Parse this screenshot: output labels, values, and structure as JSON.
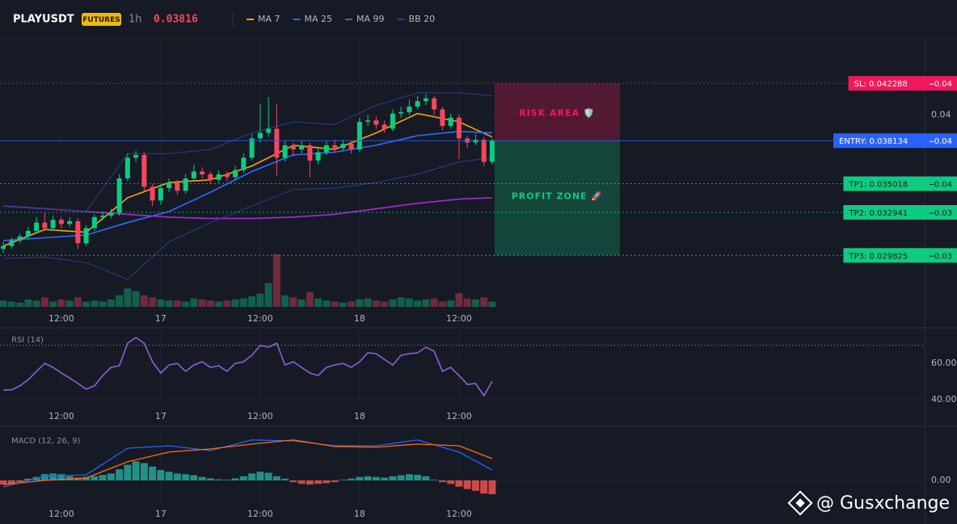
{
  "header": {
    "symbol": "PLAYUSDT",
    "badge": "FUTURES",
    "interval": "1h",
    "price": 0.03816
  },
  "watermark": "@ Gusxchange",
  "chart_data": [
    {
      "type": "candlestick",
      "xlim": [
        -0.4,
        111.2
      ],
      "xticks": [
        {
          "value": 7,
          "label": "12:00"
        },
        {
          "value": 19,
          "label": "17"
        },
        {
          "value": 31,
          "label": "12:00"
        },
        {
          "value": 43,
          "label": "18"
        },
        {
          "value": 55,
          "label": "12:00"
        }
      ],
      "ylim": [
        0.0261,
        0.0454
      ],
      "yticks": [
        0.04
      ],
      "up_color": "#0ecb81",
      "down_color": "#f6465d",
      "open": [
        0.0303,
        0.0305,
        0.0309,
        0.0312,
        0.0316,
        0.0322,
        0.0318,
        0.0324,
        0.0321,
        0.0323,
        0.0307,
        0.0318,
        0.0326,
        0.0327,
        0.0329,
        0.0354,
        0.0369,
        0.0371,
        0.0348,
        0.0338,
        0.0347,
        0.0351,
        0.0345,
        0.0354,
        0.0359,
        0.0357,
        0.0353,
        0.0357,
        0.0355,
        0.036,
        0.0369,
        0.0383,
        0.0387,
        0.039,
        0.0369,
        0.0378,
        0.0375,
        0.0378,
        0.0367,
        0.0373,
        0.0378,
        0.0376,
        0.0379,
        0.0375,
        0.0395,
        0.0396,
        0.0393,
        0.039,
        0.0401,
        0.0402,
        0.0406,
        0.041,
        0.0412,
        0.0404,
        0.0392,
        0.0398,
        0.0383,
        0.038,
        0.0382,
        0.0366
      ],
      "high": [
        0.0308,
        0.0311,
        0.0314,
        0.0319,
        0.0326,
        0.0329,
        0.0327,
        0.0326,
        0.0326,
        0.0325,
        0.032,
        0.0328,
        0.033,
        0.0332,
        0.0357,
        0.0372,
        0.0374,
        0.0373,
        0.035,
        0.035,
        0.0354,
        0.0353,
        0.0357,
        0.0364,
        0.0362,
        0.0359,
        0.036,
        0.0359,
        0.0363,
        0.0372,
        0.0386,
        0.0408,
        0.0413,
        0.0408,
        0.0381,
        0.038,
        0.0381,
        0.038,
        0.0376,
        0.0381,
        0.0382,
        0.0382,
        0.0381,
        0.0398,
        0.04,
        0.0399,
        0.0396,
        0.0404,
        0.0406,
        0.0411,
        0.0414,
        0.0415,
        0.0414,
        0.0406,
        0.0401,
        0.04,
        0.0385,
        0.0386,
        0.0384,
        0.0383
      ],
      "low": [
        0.03,
        0.0303,
        0.0307,
        0.031,
        0.0314,
        0.0316,
        0.0316,
        0.0318,
        0.0319,
        0.0303,
        0.0305,
        0.0316,
        0.0324,
        0.0325,
        0.0327,
        0.0352,
        0.0366,
        0.0345,
        0.0334,
        0.0335,
        0.0344,
        0.0342,
        0.0343,
        0.0352,
        0.0354,
        0.035,
        0.0351,
        0.0352,
        0.0353,
        0.0358,
        0.0367,
        0.038,
        0.0384,
        0.0356,
        0.0366,
        0.037,
        0.0372,
        0.0355,
        0.0364,
        0.0371,
        0.0373,
        0.0374,
        0.0372,
        0.0373,
        0.0392,
        0.039,
        0.0387,
        0.0388,
        0.0398,
        0.04,
        0.0404,
        0.0407,
        0.04,
        0.0389,
        0.039,
        0.0368,
        0.0376,
        0.0378,
        0.0363,
        0.0364
      ],
      "close": [
        0.0305,
        0.0309,
        0.0312,
        0.0316,
        0.0322,
        0.0318,
        0.0324,
        0.0321,
        0.0323,
        0.0307,
        0.0318,
        0.0326,
        0.0327,
        0.0329,
        0.0354,
        0.0369,
        0.0371,
        0.0348,
        0.0338,
        0.0347,
        0.0351,
        0.0345,
        0.0354,
        0.0359,
        0.0357,
        0.0353,
        0.0357,
        0.0355,
        0.036,
        0.0369,
        0.0383,
        0.0387,
        0.039,
        0.0369,
        0.0378,
        0.0375,
        0.0378,
        0.0367,
        0.0373,
        0.0378,
        0.0376,
        0.0379,
        0.0375,
        0.0395,
        0.0396,
        0.0393,
        0.039,
        0.0401,
        0.0402,
        0.0406,
        0.041,
        0.0412,
        0.0404,
        0.0392,
        0.0398,
        0.0383,
        0.038,
        0.0382,
        0.0366,
        0.03816
      ],
      "volume_ylim": [
        0,
        100
      ],
      "volume": [
        12,
        10,
        8,
        14,
        12,
        18,
        10,
        14,
        12,
        18,
        10,
        12,
        10,
        14,
        22,
        35,
        30,
        22,
        18,
        14,
        12,
        12,
        10,
        16,
        14,
        12,
        10,
        12,
        14,
        16,
        20,
        25,
        45,
        100,
        22,
        18,
        14,
        28,
        16,
        12,
        10,
        8,
        10,
        14,
        16,
        12,
        10,
        14,
        18,
        16,
        12,
        14,
        16,
        10,
        12,
        26,
        16,
        14,
        18,
        10
      ],
      "overlays": {
        "x": [
          0,
          5,
          10,
          15,
          20,
          25,
          30,
          35,
          40,
          45,
          50,
          55,
          59
        ],
        "series": [
          {
            "name": "MA 7",
            "color": "#f7a600",
            "values": [
              0.0305,
              0.0317,
              0.0315,
              0.034,
              0.0351,
              0.0353,
              0.0363,
              0.0378,
              0.0375,
              0.0387,
              0.0401,
              0.0395,
              0.0384
            ]
          },
          {
            "name": "MA 25",
            "color": "#2f6bff",
            "values": [
              0.0309,
              0.0311,
              0.0313,
              0.0322,
              0.033,
              0.0344,
              0.0359,
              0.0371,
              0.0373,
              0.0378,
              0.0385,
              0.0388,
              0.0387
            ]
          },
          {
            "name": "MA 99",
            "color": "#a72ad1",
            "values": [
              0.0334,
              0.0332,
              0.033,
              0.0328,
              0.0326,
              0.0325,
              0.0325,
              0.0326,
              0.0328,
              0.0332,
              0.0336,
              0.0339,
              0.034
            ]
          },
          {
            "name": "BB 20",
            "color": "#2a3f8f",
            "values": [
              0.0334,
              0.0332,
              0.033,
              0.0372,
              0.0372,
              0.0375,
              0.0387,
              0.0395,
              0.0393,
              0.0407,
              0.0416,
              0.0416,
              0.0414
            ],
            "lower": [
              0.0296,
              0.0297,
              0.0293,
              0.0281,
              0.0308,
              0.0322,
              0.0334,
              0.0346,
              0.0347,
              0.0351,
              0.0357,
              0.0366,
              0.0369
            ]
          }
        ]
      },
      "levels": [
        {
          "label": "SL: 0.042288",
          "value": 0.042288,
          "tag": "0.04",
          "color": "#f0185a",
          "text_color": "#ffffff",
          "style": "dotted"
        },
        {
          "label": "ENTRY: 0.038134",
          "value": 0.038134,
          "tag": "0.04",
          "color": "#2962ff",
          "text_color": "#ffffff",
          "style": "solid"
        },
        {
          "label": "TP1: 0.035018",
          "value": 0.035018,
          "tag": "0.04",
          "color": "#0ecb81",
          "text_color": "#10231c",
          "style": "dotted"
        },
        {
          "label": "TP2: 0.032941",
          "value": 0.032941,
          "tag": "0.03",
          "color": "#0ecb81",
          "text_color": "#10231c",
          "style": "dotted"
        },
        {
          "label": "TP3: 0.029825",
          "value": 0.029825,
          "tag": "0.03",
          "color": "#0ecb81",
          "text_color": "#10231c",
          "style": "dotted"
        }
      ],
      "zones": [
        "RISK AREA 🛡️",
        "PROFIT ZONE 🚀"
      ]
    },
    {
      "type": "line",
      "title": "RSI (14)",
      "color": "#8e5fd6",
      "xlim": [
        -0.4,
        111.2
      ],
      "xticks": [
        {
          "value": 7,
          "label": "12:00"
        },
        {
          "value": 19,
          "label": "17"
        },
        {
          "value": 31,
          "label": "12:00"
        },
        {
          "value": 43,
          "label": "18"
        },
        {
          "value": 55,
          "label": "12:00"
        }
      ],
      "ylim": [
        37.8,
        77.8
      ],
      "yticks": [
        {
          "value": 40,
          "label": "40.00"
        },
        {
          "value": 60,
          "label": "60.00"
        }
      ],
      "levels": [
        70
      ],
      "values": [
        45.3,
        45.5,
        47.6,
        51,
        55.6,
        60,
        57.8,
        54.7,
        52,
        48.9,
        45.8,
        47.6,
        53.3,
        57.8,
        58.7,
        71.1,
        74.2,
        71.1,
        60.9,
        54.7,
        59.1,
        60,
        55.6,
        59.1,
        60.9,
        57.8,
        58.7,
        55.6,
        60,
        60.9,
        64.4,
        69.8,
        68.9,
        71.1,
        59.1,
        60.9,
        57.8,
        54.7,
        53.3,
        57.8,
        59.1,
        60,
        57.8,
        60.9,
        65.8,
        65.3,
        62.2,
        59.1,
        64.4,
        65.3,
        65.8,
        68.9,
        66.7,
        55.6,
        57.8,
        53.3,
        48.4,
        48.9,
        42.2,
        50.2
      ]
    },
    {
      "type": "macd",
      "title": "MACD (12, 26, 9)",
      "xlim": [
        -0.4,
        111.2
      ],
      "xticks": [
        {
          "value": 7,
          "label": "12:00"
        },
        {
          "value": 19,
          "label": "17"
        },
        {
          "value": 31,
          "label": "12:00"
        },
        {
          "value": 43,
          "label": "18"
        },
        {
          "value": 55,
          "label": "12:00"
        }
      ],
      "ylim": [
        -0.0007,
        0.0014
      ],
      "yticks": [
        {
          "value": 0,
          "label": "0.00"
        }
      ],
      "up_color": "#26a69a",
      "down_color": "#ef5350",
      "values": [
        -0.00012,
        -0.0001,
        -5e-05,
        5e-05,
        0.0001,
        0.00018,
        0.0002,
        0.00018,
        0.00012,
        8e-05,
        0.0001,
        0.00012,
        0.00016,
        0.0002,
        0.00032,
        0.00045,
        0.00055,
        0.0005,
        0.0004,
        0.0003,
        0.00025,
        0.0002,
        0.00018,
        0.00015,
        0.0001,
        6e-05,
        3e-05,
        2e-05,
        6e-05,
        0.00012,
        0.0002,
        0.00025,
        0.00022,
        0.00012,
        5e-05,
        -5e-05,
        -0.0001,
        -0.00012,
        -0.0001,
        -8e-05,
        -5e-05,
        2e-05,
        5e-05,
        0.0001,
        0.00012,
        0.0001,
        8e-05,
        0.00012,
        0.00015,
        0.00018,
        0.00016,
        0.00012,
        2e-05,
        -5e-05,
        -0.0001,
        -0.00018,
        -0.00025,
        -0.0003,
        -0.00038,
        -0.0004
      ],
      "series": [
        {
          "color": "#2962ff",
          "x": [
            0,
            5,
            10,
            15,
            20,
            25,
            30,
            35,
            40,
            45,
            50,
            55,
            59
          ],
          "values": [
            -0.00019,
            0.00012,
            0.00016,
            0.00093,
            0.001,
            0.00086,
            0.00117,
            0.00114,
            0.001,
            0.001,
            0.00117,
            0.00082,
            0.0003
          ]
        },
        {
          "color": "#ff6d00",
          "x": [
            0,
            5,
            10,
            15,
            20,
            25,
            30,
            35,
            40,
            45,
            50,
            55,
            59
          ],
          "values": [
            -0.00012,
            0,
            7e-05,
            0.00054,
            0.00082,
            0.00091,
            0.00105,
            0.00117,
            0.00098,
            0.00096,
            0.00105,
            0.001,
            0.00063
          ]
        }
      ]
    }
  ]
}
